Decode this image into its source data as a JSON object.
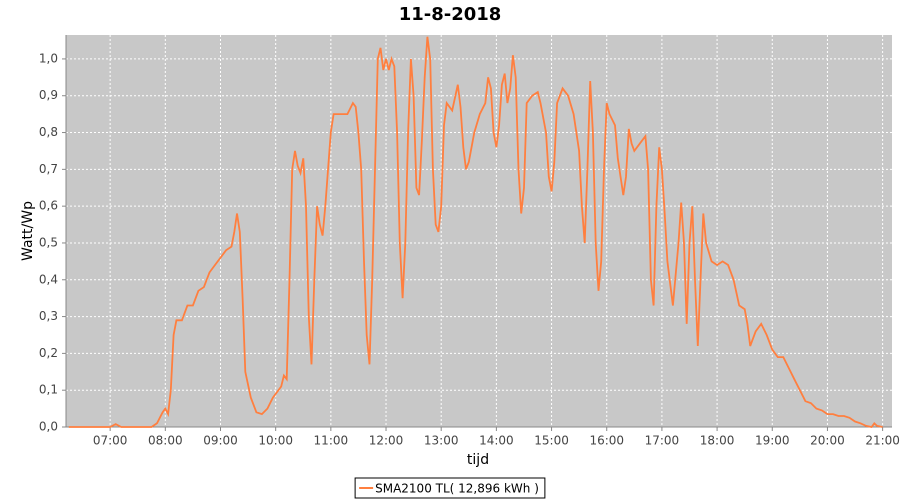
{
  "chart_data": {
    "type": "line",
    "title": "11-8-2018",
    "x_label": "tijd",
    "y_label": "Watt/Wp",
    "x": [
      6.25,
      7.0,
      7.1,
      7.2,
      7.75,
      7.85,
      7.95,
      8.0,
      8.05,
      8.1,
      8.15,
      8.2,
      8.3,
      8.4,
      8.5,
      8.6,
      8.7,
      8.8,
      8.9,
      9.0,
      9.1,
      9.2,
      9.25,
      9.3,
      9.35,
      9.4,
      9.45,
      9.55,
      9.65,
      9.75,
      9.85,
      9.95,
      10.1,
      10.15,
      10.2,
      10.25,
      10.3,
      10.35,
      10.4,
      10.45,
      10.5,
      10.55,
      10.6,
      10.65,
      10.7,
      10.75,
      10.8,
      10.85,
      10.9,
      11.0,
      11.05,
      11.2,
      11.3,
      11.4,
      11.45,
      11.5,
      11.55,
      11.6,
      11.65,
      11.7,
      11.75,
      11.8,
      11.85,
      11.9,
      11.95,
      12.0,
      12.05,
      12.1,
      12.15,
      12.2,
      12.25,
      12.3,
      12.35,
      12.4,
      12.45,
      12.5,
      12.55,
      12.6,
      12.65,
      12.7,
      12.75,
      12.8,
      12.85,
      12.9,
      12.95,
      13.0,
      13.05,
      13.1,
      13.2,
      13.3,
      13.35,
      13.4,
      13.45,
      13.5,
      13.6,
      13.7,
      13.8,
      13.85,
      13.9,
      13.95,
      14.0,
      14.05,
      14.1,
      14.15,
      14.2,
      14.25,
      14.3,
      14.35,
      14.4,
      14.45,
      14.5,
      14.55,
      14.65,
      14.75,
      14.8,
      14.9,
      14.95,
      15.0,
      15.05,
      15.1,
      15.2,
      15.3,
      15.4,
      15.5,
      15.55,
      15.6,
      15.65,
      15.7,
      15.75,
      15.8,
      15.85,
      15.9,
      15.95,
      16.0,
      16.05,
      16.15,
      16.2,
      16.3,
      16.35,
      16.4,
      16.45,
      16.5,
      16.6,
      16.7,
      16.75,
      16.8,
      16.85,
      16.9,
      16.95,
      17.0,
      17.05,
      17.1,
      17.2,
      17.3,
      17.35,
      17.4,
      17.45,
      17.5,
      17.55,
      17.6,
      17.65,
      17.7,
      17.75,
      17.8,
      17.9,
      18.0,
      18.1,
      18.2,
      18.3,
      18.4,
      18.5,
      18.55,
      18.6,
      18.7,
      18.8,
      18.9,
      19.0,
      19.1,
      19.2,
      19.3,
      19.4,
      19.5,
      19.6,
      19.7,
      19.8,
      19.9,
      20.0,
      20.1,
      20.2,
      20.3,
      20.4,
      20.5,
      20.6,
      20.7,
      20.8,
      20.85,
      20.9,
      21.0
    ],
    "series": [
      {
        "name": "SMA2100 TL( 12,896 kWh )",
        "color": "#ff7f3f",
        "values": [
          0,
          0,
          0.008,
          0,
          0,
          0.01,
          0.04,
          0.05,
          0.035,
          0.1,
          0.25,
          0.29,
          0.29,
          0.33,
          0.33,
          0.37,
          0.38,
          0.42,
          0.44,
          0.46,
          0.48,
          0.49,
          0.53,
          0.58,
          0.53,
          0.35,
          0.15,
          0.08,
          0.04,
          0.035,
          0.05,
          0.08,
          0.11,
          0.14,
          0.13,
          0.4,
          0.7,
          0.75,
          0.71,
          0.69,
          0.73,
          0.6,
          0.3,
          0.17,
          0.4,
          0.6,
          0.55,
          0.52,
          0.6,
          0.8,
          0.85,
          0.85,
          0.85,
          0.88,
          0.87,
          0.8,
          0.7,
          0.45,
          0.25,
          0.17,
          0.4,
          0.7,
          1.0,
          1.03,
          0.97,
          1.0,
          0.97,
          1.0,
          0.98,
          0.8,
          0.5,
          0.35,
          0.5,
          0.8,
          1.0,
          0.9,
          0.65,
          0.63,
          0.78,
          0.95,
          1.06,
          1.0,
          0.7,
          0.55,
          0.53,
          0.6,
          0.82,
          0.88,
          0.86,
          0.93,
          0.87,
          0.76,
          0.7,
          0.72,
          0.8,
          0.85,
          0.88,
          0.95,
          0.92,
          0.8,
          0.76,
          0.82,
          0.93,
          0.96,
          0.88,
          0.92,
          1.01,
          0.95,
          0.7,
          0.58,
          0.65,
          0.88,
          0.9,
          0.91,
          0.88,
          0.8,
          0.68,
          0.64,
          0.72,
          0.88,
          0.92,
          0.9,
          0.85,
          0.75,
          0.6,
          0.5,
          0.7,
          0.94,
          0.8,
          0.5,
          0.37,
          0.45,
          0.7,
          0.88,
          0.85,
          0.82,
          0.73,
          0.63,
          0.68,
          0.81,
          0.77,
          0.75,
          0.77,
          0.79,
          0.7,
          0.4,
          0.33,
          0.6,
          0.76,
          0.7,
          0.58,
          0.45,
          0.33,
          0.5,
          0.61,
          0.5,
          0.28,
          0.5,
          0.6,
          0.4,
          0.22,
          0.4,
          0.58,
          0.5,
          0.45,
          0.44,
          0.45,
          0.44,
          0.4,
          0.33,
          0.32,
          0.28,
          0.22,
          0.26,
          0.28,
          0.25,
          0.21,
          0.19,
          0.19,
          0.16,
          0.13,
          0.1,
          0.07,
          0.065,
          0.05,
          0.045,
          0.035,
          0.035,
          0.03,
          0.03,
          0.025,
          0.015,
          0.01,
          0.003,
          0,
          0.01,
          0.003,
          0
        ]
      }
    ],
    "xlim": [
      6.2,
      21.17
    ],
    "xticks": [
      {
        "value": 7,
        "label": "07:00"
      },
      {
        "value": 8,
        "label": "08:00"
      },
      {
        "value": 9,
        "label": "09:00"
      },
      {
        "value": 10,
        "label": "10:00"
      },
      {
        "value": 11,
        "label": "11:00"
      },
      {
        "value": 12,
        "label": "12:00"
      },
      {
        "value": 13,
        "label": "13:00"
      },
      {
        "value": 14,
        "label": "14:00"
      },
      {
        "value": 15,
        "label": "15:00"
      },
      {
        "value": 16,
        "label": "16:00"
      },
      {
        "value": 17,
        "label": "17:00"
      },
      {
        "value": 18,
        "label": "18:00"
      },
      {
        "value": 19,
        "label": "19:00"
      },
      {
        "value": 20,
        "label": "20:00"
      },
      {
        "value": 21,
        "label": "21:00"
      }
    ],
    "ylim": [
      0,
      1.065
    ],
    "yticks": [
      {
        "value": 0,
        "label": "0,0"
      },
      {
        "value": 0.1,
        "label": "0,1"
      },
      {
        "value": 0.2,
        "label": "0,2"
      },
      {
        "value": 0.3,
        "label": "0,3"
      },
      {
        "value": 0.4,
        "label": "0,4"
      },
      {
        "value": 0.5,
        "label": "0,5"
      },
      {
        "value": 0.6,
        "label": "0,6"
      },
      {
        "value": 0.7,
        "label": "0,7"
      },
      {
        "value": 0.8,
        "label": "0,8"
      },
      {
        "value": 0.9,
        "label": "0,9"
      },
      {
        "value": 1.0,
        "label": "1,0"
      }
    ],
    "grid": true,
    "legend": "bottom"
  }
}
